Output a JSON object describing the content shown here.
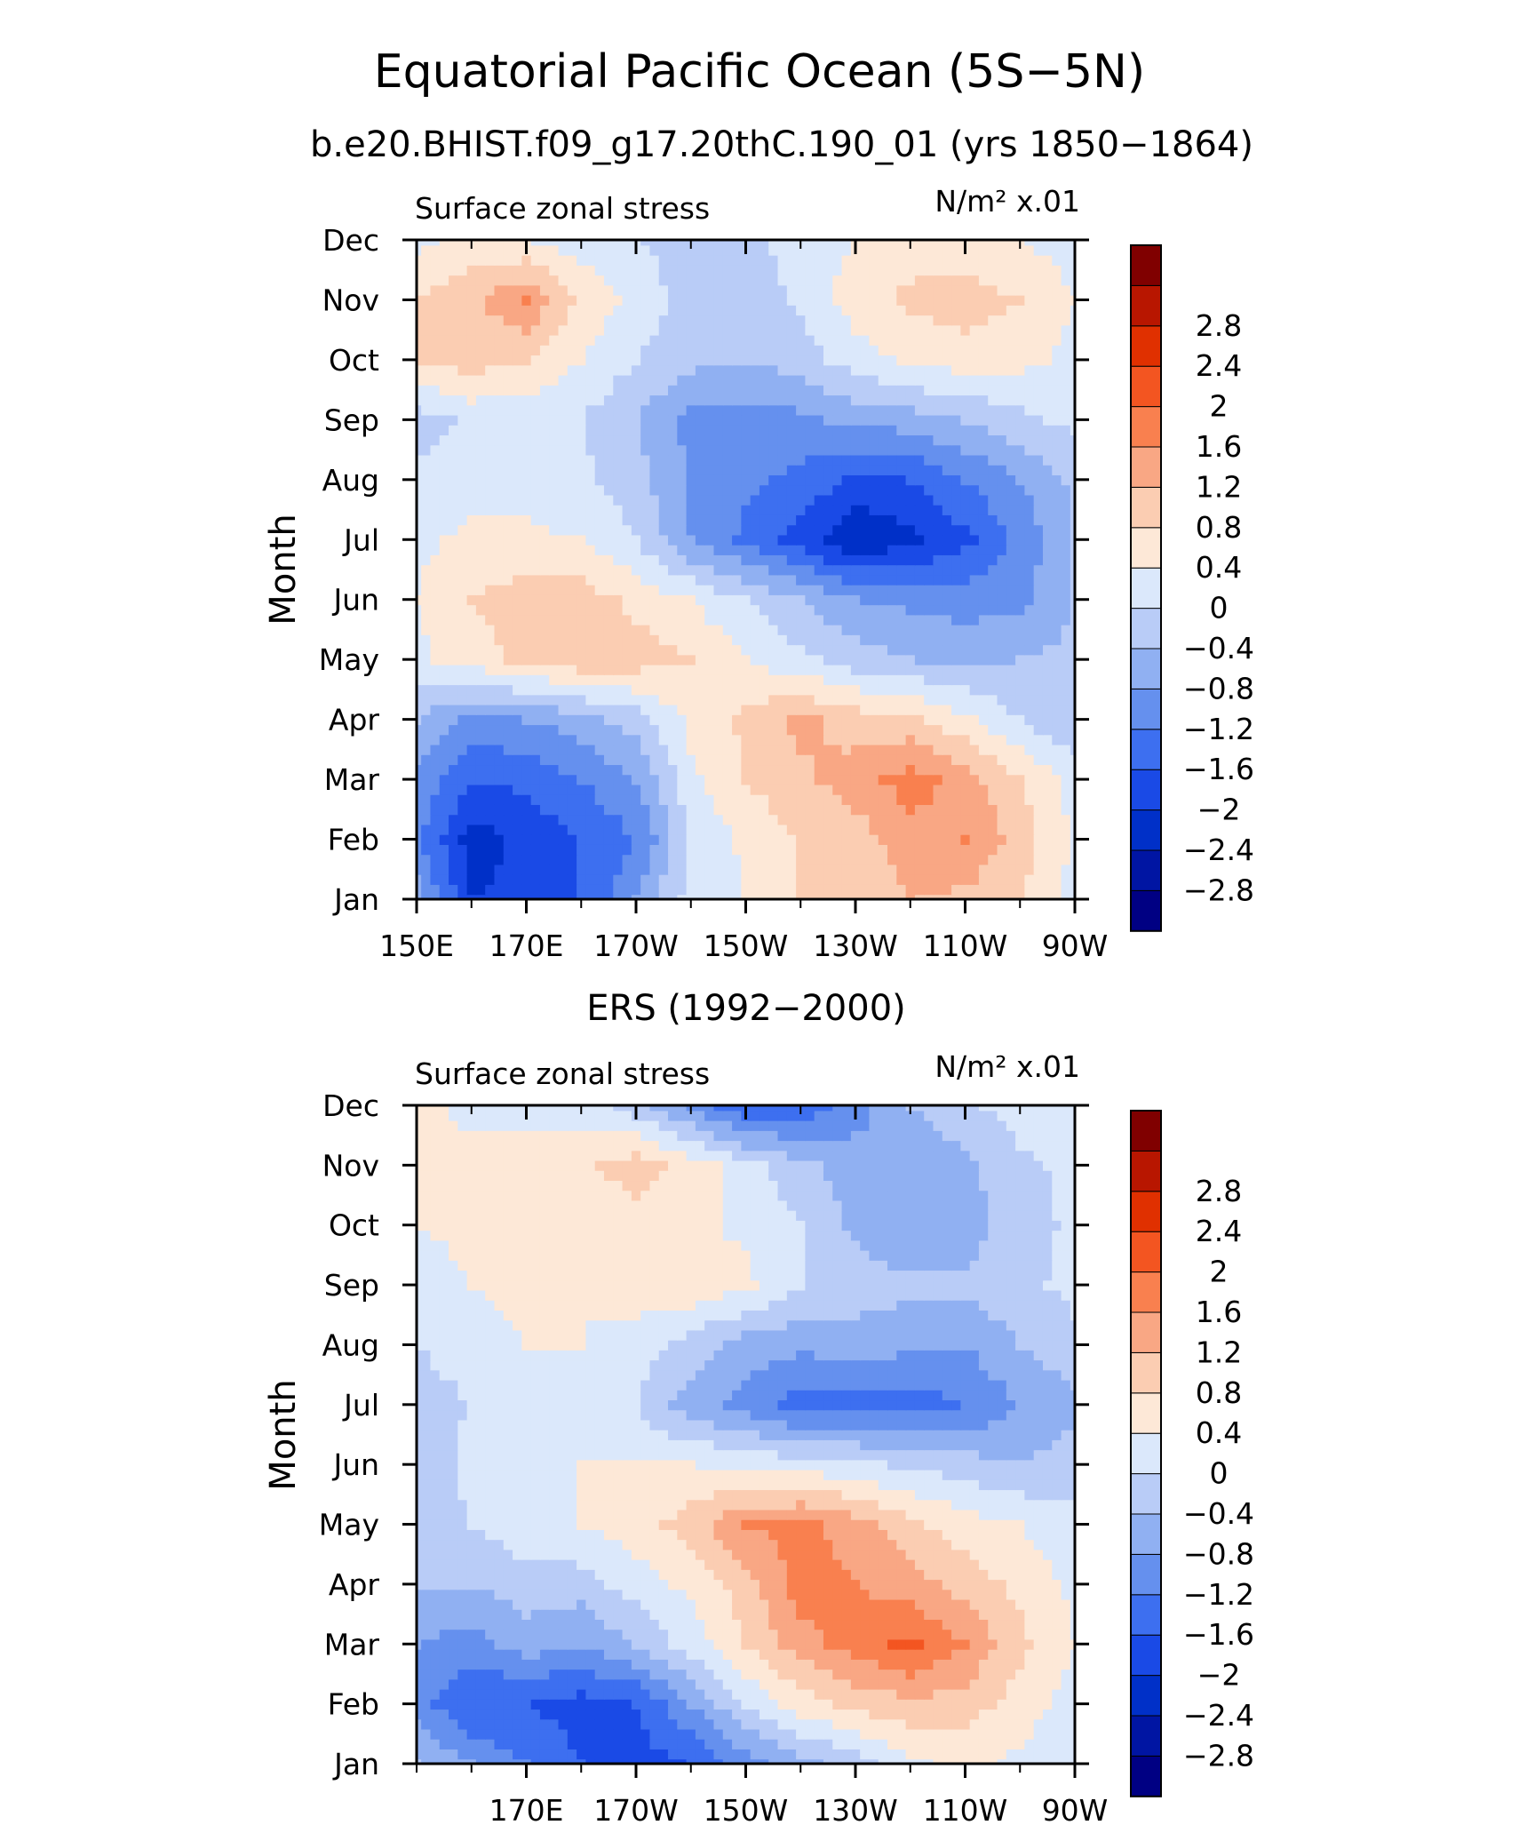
{
  "page": {
    "title": "Equatorial Pacific Ocean (5S−5N)"
  },
  "chart_data": [
    {
      "type": "heatmap",
      "title": "b.e20.BHIST.f09_g17.20thC.190_01 (yrs 1850−1864)",
      "left_label": "Surface zonal stress",
      "right_label": "N/m² x.01",
      "ylabel": "Month",
      "y_categories": [
        "Jan",
        "Feb",
        "Mar",
        "Apr",
        "May",
        "Jun",
        "Jul",
        "Aug",
        "Sep",
        "Oct",
        "Nov",
        "Dec"
      ],
      "x_ticks": [
        "150E",
        "170E",
        "170W",
        "150W",
        "130W",
        "110W",
        "90W"
      ],
      "x_tick_values": [
        150,
        170,
        190,
        210,
        230,
        250,
        270
      ],
      "xlim": [
        150,
        270
      ],
      "color_levels": [
        -2.8,
        -2.4,
        -2,
        -1.6,
        -1.2,
        -0.8,
        -0.4,
        0,
        0.4,
        0.8,
        1.2,
        1.6,
        2,
        2.4,
        2.8
      ],
      "grid_values": [
        [
          -0.6,
          -2.0,
          -1.9,
          -1.6,
          -0.8,
          0.2,
          0.4,
          0.8,
          1.0,
          1.2,
          1.1,
          0.8,
          0.3
        ],
        [
          -1.1,
          -2.2,
          -1.9,
          -1.6,
          -1.2,
          0.0,
          0.5,
          0.8,
          1.0,
          1.4,
          1.6,
          1.0,
          0.3
        ],
        [
          -0.9,
          -1.6,
          -1.5,
          -1.2,
          -0.8,
          0.3,
          0.8,
          1.1,
          1.4,
          1.8,
          1.4,
          0.8,
          0.3
        ],
        [
          -0.4,
          -0.9,
          -0.8,
          -0.6,
          -0.2,
          0.5,
          0.9,
          1.3,
          1.0,
          0.9,
          0.5,
          0.0,
          -0.4
        ],
        [
          0.3,
          0.6,
          0.9,
          1.1,
          1.0,
          0.8,
          0.4,
          0.1,
          -0.2,
          -0.4,
          -0.5,
          -0.4,
          -0.3
        ],
        [
          0.4,
          0.8,
          1.0,
          1.0,
          0.7,
          0.4,
          0.0,
          -0.4,
          -0.8,
          -0.9,
          -1.0,
          -0.9,
          -0.4
        ],
        [
          0.3,
          0.5,
          0.5,
          0.4,
          0.0,
          -0.8,
          -1.3,
          -1.8,
          -2.4,
          -2.1,
          -1.7,
          -1.1,
          -0.4
        ],
        [
          0.1,
          0.2,
          0.2,
          0.1,
          -0.2,
          -0.9,
          -1.1,
          -1.3,
          -1.7,
          -1.6,
          -1.2,
          -0.8,
          -0.3
        ],
        [
          -0.2,
          0.1,
          0.1,
          0.0,
          -0.4,
          -0.9,
          -1.0,
          -0.9,
          -0.7,
          -0.6,
          -0.4,
          -0.1,
          0.1
        ],
        [
          0.8,
          1.0,
          0.8,
          0.4,
          0.0,
          -0.3,
          -0.4,
          -0.2,
          0.2,
          0.5,
          0.6,
          0.5,
          0.3
        ],
        [
          0.8,
          1.1,
          1.6,
          0.7,
          0.3,
          -0.2,
          -0.3,
          0.1,
          0.6,
          0.9,
          1.0,
          0.8,
          0.4
        ],
        [
          0.3,
          0.5,
          0.4,
          0.2,
          0.0,
          -0.2,
          -0.1,
          0.2,
          0.4,
          0.6,
          0.5,
          0.4,
          0.2
        ]
      ]
    },
    {
      "type": "heatmap",
      "title": "ERS (1992−2000)",
      "left_label": "Surface zonal stress",
      "right_label": "N/m² x.01",
      "ylabel": "Month",
      "y_categories": [
        "Jan",
        "Feb",
        "Mar",
        "Apr",
        "May",
        "Jun",
        "Jul",
        "Aug",
        "Sep",
        "Oct",
        "Nov",
        "Dec"
      ],
      "x_ticks": [
        "170E",
        "170W",
        "150W",
        "130W",
        "110W",
        "90W"
      ],
      "x_tick_values": [
        170,
        190,
        210,
        230,
        250,
        270
      ],
      "xlim": [
        150,
        270
      ],
      "color_levels": [
        -2.8,
        -2.4,
        -2,
        -1.6,
        -1.2,
        -0.8,
        -0.4,
        0,
        0.4,
        0.8,
        1.2,
        1.6,
        2,
        2.4,
        2.8
      ],
      "grid_values": [
        [
          -0.4,
          -0.8,
          -1.2,
          -1.6,
          -1.8,
          -1.6,
          -1.0,
          -0.6,
          -0.2,
          0.3,
          0.5,
          0.3,
          0.1
        ],
        [
          -1.0,
          -1.6,
          -1.6,
          -1.8,
          -1.6,
          -0.8,
          0.0,
          0.6,
          0.9,
          1.1,
          1.0,
          0.6,
          0.2
        ],
        [
          -0.8,
          -1.0,
          -0.6,
          -0.8,
          -0.4,
          0.2,
          0.8,
          1.4,
          1.8,
          2.1,
          1.6,
          0.9,
          0.4
        ],
        [
          -0.4,
          -0.4,
          -0.2,
          -0.2,
          0.2,
          0.5,
          1.0,
          1.8,
          1.6,
          1.4,
          1.0,
          0.7,
          0.3
        ],
        [
          -0.3,
          0.0,
          0.3,
          0.4,
          0.6,
          1.0,
          1.6,
          1.7,
          1.4,
          0.9,
          0.6,
          0.4,
          0.1
        ],
        [
          -0.4,
          0.2,
          0.3,
          0.4,
          0.4,
          0.4,
          0.3,
          0.2,
          0.1,
          -0.1,
          -0.2,
          -0.4,
          -0.2
        ],
        [
          -0.2,
          0.0,
          0.2,
          0.3,
          0.0,
          -0.6,
          -1.0,
          -1.4,
          -1.4,
          -1.4,
          -1.2,
          -0.8,
          -0.5
        ],
        [
          0.0,
          0.2,
          0.4,
          0.4,
          0.2,
          -0.2,
          -0.6,
          -0.7,
          -0.6,
          -0.7,
          -0.8,
          -0.4,
          -0.1
        ],
        [
          0.2,
          0.4,
          0.5,
          0.4,
          0.6,
          0.7,
          0.5,
          0.0,
          -0.2,
          -0.3,
          -0.3,
          -0.1,
          0.1
        ],
        [
          0.4,
          0.5,
          0.4,
          0.5,
          0.6,
          0.5,
          0.3,
          0.0,
          -0.5,
          -0.8,
          -0.6,
          -0.2,
          0.1
        ],
        [
          0.6,
          0.5,
          0.5,
          0.7,
          1.0,
          0.6,
          0.2,
          -0.3,
          -0.6,
          -0.7,
          -0.5,
          -0.1,
          0.1
        ],
        [
          0.5,
          0.3,
          0.3,
          0.2,
          -0.2,
          -0.9,
          -1.6,
          -1.5,
          -1.0,
          -0.4,
          -0.1,
          0.2,
          0.3
        ]
      ]
    }
  ],
  "colors": {
    "levels_fill": [
      "#000083",
      "#0015a3",
      "#0030c8",
      "#1a4ae6",
      "#3d6ff0",
      "#6590ee",
      "#90b0f2",
      "#b9ccf7",
      "#dbe8fb",
      "#fde8d7",
      "#fbcdb2",
      "#f9a784",
      "#f9804f",
      "#f35521",
      "#e03000",
      "#b81600",
      "#800000"
    ]
  }
}
